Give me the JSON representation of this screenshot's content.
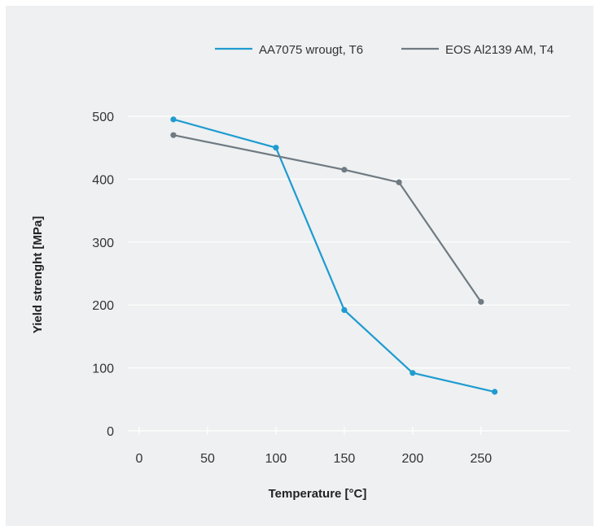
{
  "chart_data": {
    "type": "line",
    "title": "",
    "xlabel": "Temperature [°C]",
    "ylabel": "Yield strenght [MPa]",
    "xlim": [
      0,
      315
    ],
    "ylim": [
      0,
      500
    ],
    "xticks": [
      0,
      50,
      100,
      150,
      200,
      250
    ],
    "yticks": [
      0,
      100,
      200,
      300,
      400,
      500
    ],
    "grid": "horizontal",
    "legend_position": "top-right",
    "background": "#eef0f1",
    "series": [
      {
        "name": "AA7075 wrougt, T6",
        "color": "#1e9bd0",
        "x": [
          25,
          100,
          150,
          200,
          260
        ],
        "y": [
          495,
          450,
          192,
          92,
          62
        ]
      },
      {
        "name": "EOS Al2139 AM, T4",
        "color": "#6f7a82",
        "x": [
          25,
          150,
          190,
          250
        ],
        "y": [
          470,
          415,
          395,
          205
        ]
      }
    ]
  }
}
